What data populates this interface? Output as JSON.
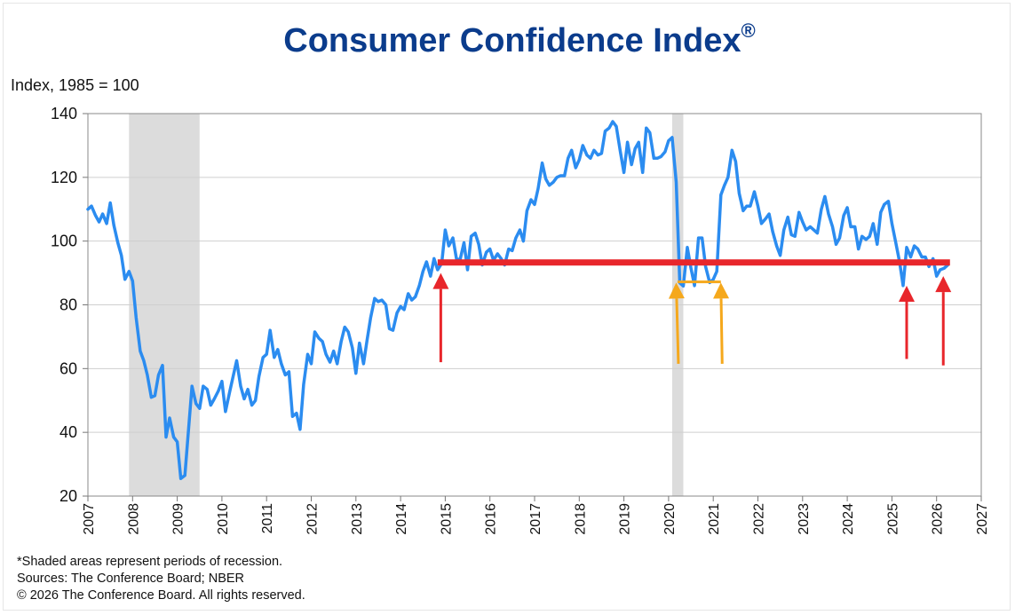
{
  "header": {
    "title": "Consumer Confidence Index",
    "title_mark": "®"
  },
  "notes": {
    "shaded": "*Shaded areas represent periods of recession.",
    "sources": "Sources: The Conference Board; NBER",
    "copyright": "© 2026 The Conference Board. All rights reserved."
  },
  "chart_data": {
    "type": "line",
    "title": "Consumer Confidence Index®",
    "ylabel": "Index, 1985 = 100",
    "xlabel": "",
    "ylim": [
      20,
      140
    ],
    "yticks": [
      20,
      40,
      60,
      80,
      100,
      120,
      140
    ],
    "xlim": [
      2007,
      2027
    ],
    "xticks": [
      "2007",
      "2008",
      "2009",
      "2010",
      "2011",
      "2012",
      "2013",
      "2014",
      "2015",
      "2016",
      "2017",
      "2018",
      "2019",
      "2020",
      "2021",
      "2022",
      "2023",
      "2024",
      "2025",
      "2026",
      "2027"
    ],
    "grid": "horizontal",
    "colors": {
      "line": "#2b8cf0",
      "recession": "#dcdcdc",
      "reference_line": "#e8262b",
      "reference_arrow": "#e8262b",
      "covid_arrow": "#f5a81c",
      "covid_line": "#f5a81c"
    },
    "recessions": [
      [
        2007.92,
        2009.5
      ],
      [
        2020.08,
        2020.33
      ]
    ],
    "series": [
      {
        "values": [
          [
            2007.0,
            110
          ],
          [
            2007.08,
            111
          ],
          [
            2007.17,
            108
          ],
          [
            2007.25,
            106
          ],
          [
            2007.33,
            108.5
          ],
          [
            2007.42,
            105.5
          ],
          [
            2007.5,
            112
          ],
          [
            2007.58,
            105
          ],
          [
            2007.67,
            99.5
          ],
          [
            2007.75,
            95.5
          ],
          [
            2007.83,
            88
          ],
          [
            2007.92,
            90.5
          ],
          [
            2008.0,
            87.5
          ],
          [
            2008.08,
            76
          ],
          [
            2008.17,
            65.5
          ],
          [
            2008.25,
            62.5
          ],
          [
            2008.33,
            58
          ],
          [
            2008.42,
            51
          ],
          [
            2008.5,
            51.5
          ],
          [
            2008.58,
            58
          ],
          [
            2008.67,
            61
          ],
          [
            2008.75,
            38.5
          ],
          [
            2008.83,
            44.5
          ],
          [
            2008.92,
            38.5
          ],
          [
            2009.0,
            37
          ],
          [
            2009.08,
            25.5
          ],
          [
            2009.17,
            26.5
          ],
          [
            2009.25,
            40.5
          ],
          [
            2009.33,
            54.5
          ],
          [
            2009.42,
            49
          ],
          [
            2009.5,
            47.5
          ],
          [
            2009.58,
            54.5
          ],
          [
            2009.67,
            53.5
          ],
          [
            2009.75,
            48.5
          ],
          [
            2009.83,
            50.5
          ],
          [
            2009.92,
            53
          ],
          [
            2010.0,
            56
          ],
          [
            2010.08,
            46.5
          ],
          [
            2010.17,
            52.5
          ],
          [
            2010.25,
            57.5
          ],
          [
            2010.33,
            62.5
          ],
          [
            2010.42,
            54.5
          ],
          [
            2010.5,
            50.5
          ],
          [
            2010.58,
            53.5
          ],
          [
            2010.67,
            48.5
          ],
          [
            2010.75,
            50
          ],
          [
            2010.83,
            57.5
          ],
          [
            2010.92,
            63.5
          ],
          [
            2011.0,
            64.5
          ],
          [
            2011.08,
            72
          ],
          [
            2011.17,
            63.5
          ],
          [
            2011.25,
            66
          ],
          [
            2011.33,
            61.5
          ],
          [
            2011.42,
            58
          ],
          [
            2011.5,
            59
          ],
          [
            2011.58,
            45
          ],
          [
            2011.67,
            46
          ],
          [
            2011.75,
            40.9
          ],
          [
            2011.83,
            55
          ],
          [
            2011.92,
            64.5
          ],
          [
            2012.0,
            61.5
          ],
          [
            2012.08,
            71.5
          ],
          [
            2012.17,
            69.5
          ],
          [
            2012.25,
            68.5
          ],
          [
            2012.33,
            64.5
          ],
          [
            2012.42,
            62
          ],
          [
            2012.5,
            65.5
          ],
          [
            2012.58,
            61.5
          ],
          [
            2012.67,
            68.5
          ],
          [
            2012.75,
            73
          ],
          [
            2012.83,
            71.5
          ],
          [
            2012.92,
            66.5
          ],
          [
            2013.0,
            58.5
          ],
          [
            2013.08,
            68
          ],
          [
            2013.17,
            61.5
          ],
          [
            2013.25,
            69
          ],
          [
            2013.33,
            76
          ],
          [
            2013.42,
            82
          ],
          [
            2013.5,
            81
          ],
          [
            2013.58,
            81.5
          ],
          [
            2013.67,
            80
          ],
          [
            2013.75,
            72.5
          ],
          [
            2013.83,
            72
          ],
          [
            2013.92,
            77.5
          ],
          [
            2014.0,
            79.5
          ],
          [
            2014.08,
            78.5
          ],
          [
            2014.17,
            83.5
          ],
          [
            2014.25,
            81.5
          ],
          [
            2014.33,
            82.5
          ],
          [
            2014.42,
            86
          ],
          [
            2014.5,
            90.5
          ],
          [
            2014.58,
            93.5
          ],
          [
            2014.67,
            89
          ],
          [
            2014.75,
            94.5
          ],
          [
            2014.83,
            91
          ],
          [
            2014.92,
            93
          ],
          [
            2015.0,
            103.5
          ],
          [
            2015.08,
            98.5
          ],
          [
            2015.17,
            101
          ],
          [
            2015.25,
            94.5
          ],
          [
            2015.33,
            94
          ],
          [
            2015.42,
            99.5
          ],
          [
            2015.5,
            91
          ],
          [
            2015.58,
            101.5
          ],
          [
            2015.67,
            102.5
          ],
          [
            2015.75,
            99
          ],
          [
            2015.83,
            92.5
          ],
          [
            2015.92,
            96.5
          ],
          [
            2016.0,
            97.5
          ],
          [
            2016.08,
            94
          ],
          [
            2016.17,
            96
          ],
          [
            2016.25,
            94.5
          ],
          [
            2016.33,
            92.5
          ],
          [
            2016.42,
            97.5
          ],
          [
            2016.5,
            97
          ],
          [
            2016.58,
            101
          ],
          [
            2016.67,
            103.5
          ],
          [
            2016.75,
            100
          ],
          [
            2016.83,
            109.5
          ],
          [
            2016.92,
            113
          ],
          [
            2017.0,
            111.5
          ],
          [
            2017.08,
            116.5
          ],
          [
            2017.17,
            124.5
          ],
          [
            2017.25,
            119.5
          ],
          [
            2017.33,
            117.5
          ],
          [
            2017.42,
            118.5
          ],
          [
            2017.5,
            120
          ],
          [
            2017.58,
            120.5
          ],
          [
            2017.67,
            120.5
          ],
          [
            2017.75,
            126
          ],
          [
            2017.83,
            128.5
          ],
          [
            2017.92,
            123
          ],
          [
            2018.0,
            125.5
          ],
          [
            2018.08,
            130
          ],
          [
            2018.17,
            127
          ],
          [
            2018.25,
            126
          ],
          [
            2018.33,
            128.5
          ],
          [
            2018.42,
            127
          ],
          [
            2018.5,
            127.5
          ],
          [
            2018.58,
            134.5
          ],
          [
            2018.67,
            135.5
          ],
          [
            2018.75,
            137.5
          ],
          [
            2018.83,
            136
          ],
          [
            2018.92,
            128
          ],
          [
            2019.0,
            121.5
          ],
          [
            2019.08,
            131
          ],
          [
            2019.17,
            124
          ],
          [
            2019.25,
            129
          ],
          [
            2019.33,
            131
          ],
          [
            2019.42,
            121.5
          ],
          [
            2019.5,
            135.5
          ],
          [
            2019.58,
            134
          ],
          [
            2019.67,
            126
          ],
          [
            2019.75,
            126
          ],
          [
            2019.83,
            126.5
          ],
          [
            2019.92,
            128
          ],
          [
            2020.0,
            131.5
          ],
          [
            2020.08,
            132.5
          ],
          [
            2020.17,
            118.5
          ],
          [
            2020.25,
            86.9
          ],
          [
            2020.33,
            85.9
          ],
          [
            2020.42,
            98
          ],
          [
            2020.5,
            91.5
          ],
          [
            2020.58,
            86
          ],
          [
            2020.67,
            101
          ],
          [
            2020.75,
            101
          ],
          [
            2020.83,
            92
          ],
          [
            2020.92,
            87
          ],
          [
            2021.0,
            88
          ],
          [
            2021.08,
            90.5
          ],
          [
            2021.17,
            114.5
          ],
          [
            2021.25,
            117.5
          ],
          [
            2021.33,
            120
          ],
          [
            2021.42,
            128.5
          ],
          [
            2021.5,
            125
          ],
          [
            2021.58,
            115
          ],
          [
            2021.67,
            109.5
          ],
          [
            2021.75,
            111
          ],
          [
            2021.83,
            111
          ],
          [
            2021.92,
            115.5
          ],
          [
            2022.0,
            111
          ],
          [
            2022.08,
            105.5
          ],
          [
            2022.17,
            107
          ],
          [
            2022.25,
            108.5
          ],
          [
            2022.33,
            103
          ],
          [
            2022.42,
            98.5
          ],
          [
            2022.5,
            95.5
          ],
          [
            2022.58,
            103.5
          ],
          [
            2022.67,
            107.5
          ],
          [
            2022.75,
            102
          ],
          [
            2022.83,
            101.5
          ],
          [
            2022.92,
            109
          ],
          [
            2023.0,
            106
          ],
          [
            2023.08,
            103.5
          ],
          [
            2023.17,
            104.5
          ],
          [
            2023.25,
            103.5
          ],
          [
            2023.33,
            102.5
          ],
          [
            2023.42,
            110
          ],
          [
            2023.5,
            114
          ],
          [
            2023.58,
            108.5
          ],
          [
            2023.67,
            104.5
          ],
          [
            2023.75,
            99
          ],
          [
            2023.83,
            101
          ],
          [
            2023.92,
            108
          ],
          [
            2024.0,
            110.5
          ],
          [
            2024.08,
            104.5
          ],
          [
            2024.17,
            104.5
          ],
          [
            2024.25,
            97.5
          ],
          [
            2024.33,
            101.5
          ],
          [
            2024.42,
            100.5
          ],
          [
            2024.5,
            101.5
          ],
          [
            2024.58,
            105.5
          ],
          [
            2024.67,
            99
          ],
          [
            2024.75,
            109
          ],
          [
            2024.83,
            111.5
          ],
          [
            2024.92,
            112.5
          ],
          [
            2025.0,
            105.5
          ],
          [
            2025.08,
            100
          ],
          [
            2025.17,
            93.5
          ],
          [
            2025.25,
            86
          ],
          [
            2025.33,
            98
          ],
          [
            2025.42,
            95
          ],
          [
            2025.5,
            98.5
          ],
          [
            2025.58,
            97.5
          ],
          [
            2025.67,
            95
          ],
          [
            2025.75,
            95
          ],
          [
            2025.83,
            92
          ],
          [
            2025.92,
            94.5
          ],
          [
            2026.0,
            89
          ],
          [
            2026.08,
            91
          ],
          [
            2026.17,
            91.5
          ],
          [
            2026.25,
            92.5
          ]
        ]
      }
    ],
    "annotations": {
      "reference_line": {
        "y": 93.3,
        "x_start": 2014.83,
        "x_end": 2026.3
      },
      "covid_line": {
        "y": 87.2,
        "x_start": 2020.2,
        "x_end": 2021.17
      },
      "red_arrows": [
        {
          "x": 2014.9,
          "y_base": 62,
          "y_tip": 90
        },
        {
          "x": 2025.33,
          "y_base": 63,
          "y_tip": 86
        },
        {
          "x": 2026.15,
          "y_base": 61,
          "y_tip": 89
        }
      ],
      "orange_arrows": [
        {
          "x": 2020.17,
          "x_base": 2020.22,
          "y_base": 61.5,
          "y_tip": 87
        },
        {
          "x": 2021.17,
          "x_base": 2021.2,
          "y_base": 61.5,
          "y_tip": 87
        }
      ]
    }
  }
}
